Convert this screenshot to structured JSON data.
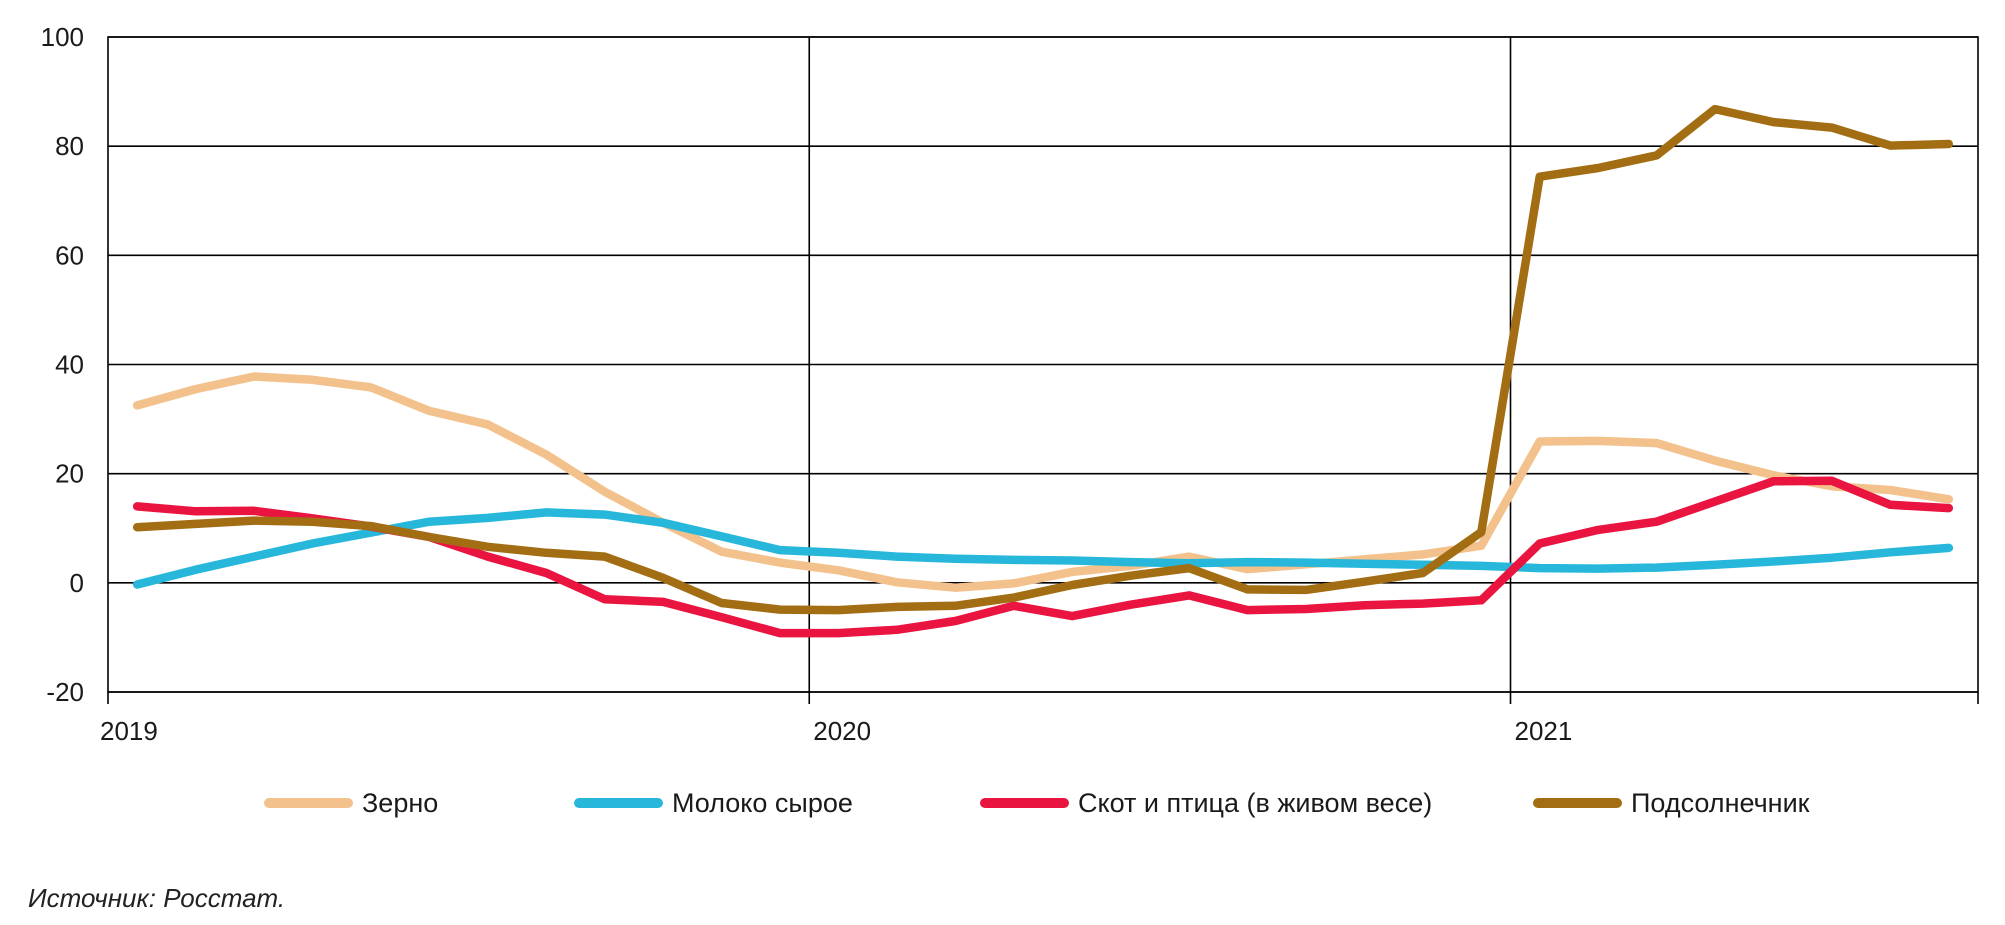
{
  "source_note": "Источник: Росстат.",
  "legend": {
    "items": [
      {
        "label": "Зерно"
      },
      {
        "label": "Молоко сырое"
      },
      {
        "label": "Скот и птица (в живом весе)"
      },
      {
        "label": "Подсолнечник"
      }
    ]
  },
  "chart_data": {
    "type": "line",
    "title": "",
    "xlabel": "",
    "ylabel": "",
    "ylim": [
      -20,
      100
    ],
    "y_ticks": [
      100,
      80,
      60,
      40,
      20,
      0,
      -20
    ],
    "grid": "horizontal-every-20, vertical-at-year-boundaries",
    "legend_position": "bottom",
    "x_months": [
      "2019-01",
      "2019-02",
      "2019-03",
      "2019-04",
      "2019-05",
      "2019-06",
      "2019-07",
      "2019-08",
      "2019-09",
      "2019-10",
      "2019-11",
      "2019-12",
      "2020-01",
      "2020-02",
      "2020-03",
      "2020-04",
      "2020-05",
      "2020-06",
      "2020-07",
      "2020-08",
      "2020-09",
      "2020-10",
      "2020-11",
      "2020-12",
      "2021-01",
      "2021-02",
      "2021-03",
      "2021-04",
      "2021-05",
      "2021-06",
      "2021-07",
      "2021-08"
    ],
    "x_axis_labels": [
      {
        "label": "2019",
        "month_index": 0
      },
      {
        "label": "2020",
        "month_index": 12
      },
      {
        "label": "2021",
        "month_index": 24
      }
    ],
    "series": [
      {
        "name": "Зерно",
        "color": "#F3C28C",
        "values": [
          32.5,
          35.5,
          37.8,
          37.2,
          35.8,
          31.5,
          29.0,
          23.5,
          16.7,
          11.0,
          5.7,
          3.7,
          2.3,
          0.1,
          -0.9,
          -0.1,
          2.0,
          3.1,
          4.8,
          2.5,
          3.4,
          4.3,
          5.2,
          6.8,
          25.9,
          26.0,
          25.6,
          22.4,
          19.7,
          17.7,
          17.0,
          15.3
        ]
      },
      {
        "name": "Молоко сырое",
        "color": "#27B7DA",
        "values": [
          -0.3,
          2.4,
          4.8,
          7.2,
          9.2,
          11.2,
          11.9,
          12.9,
          12.5,
          11.0,
          8.5,
          6.0,
          5.5,
          4.8,
          4.4,
          4.2,
          4.1,
          3.8,
          3.6,
          3.8,
          3.7,
          3.5,
          3.3,
          3.1,
          2.7,
          2.6,
          2.8,
          3.3,
          3.9,
          4.6,
          5.6,
          6.4
        ]
      },
      {
        "name": "Скот и птица (в живом весе)",
        "color": "#E9143F",
        "values": [
          14.0,
          13.1,
          13.2,
          11.8,
          10.3,
          8.4,
          4.8,
          1.8,
          -3.0,
          -3.5,
          -6.3,
          -9.2,
          -9.2,
          -8.6,
          -7.0,
          -4.2,
          -6.1,
          -4.0,
          -2.3,
          -5.0,
          -4.8,
          -4.1,
          -3.8,
          -3.2,
          7.2,
          9.7,
          11.2,
          14.9,
          18.6,
          18.7,
          14.3,
          13.7
        ]
      },
      {
        "name": "Подсолнечник",
        "color": "#A36E13",
        "values": [
          10.2,
          10.8,
          11.4,
          11.2,
          10.4,
          8.4,
          6.6,
          5.5,
          4.8,
          0.9,
          -3.7,
          -4.9,
          -5.0,
          -4.4,
          -4.2,
          -2.7,
          -0.4,
          1.3,
          2.7,
          -1.2,
          -1.3,
          0.2,
          1.8,
          9.3,
          74.4,
          76.0,
          78.3,
          86.8,
          84.4,
          83.4,
          80.1,
          80.4
        ]
      }
    ]
  }
}
